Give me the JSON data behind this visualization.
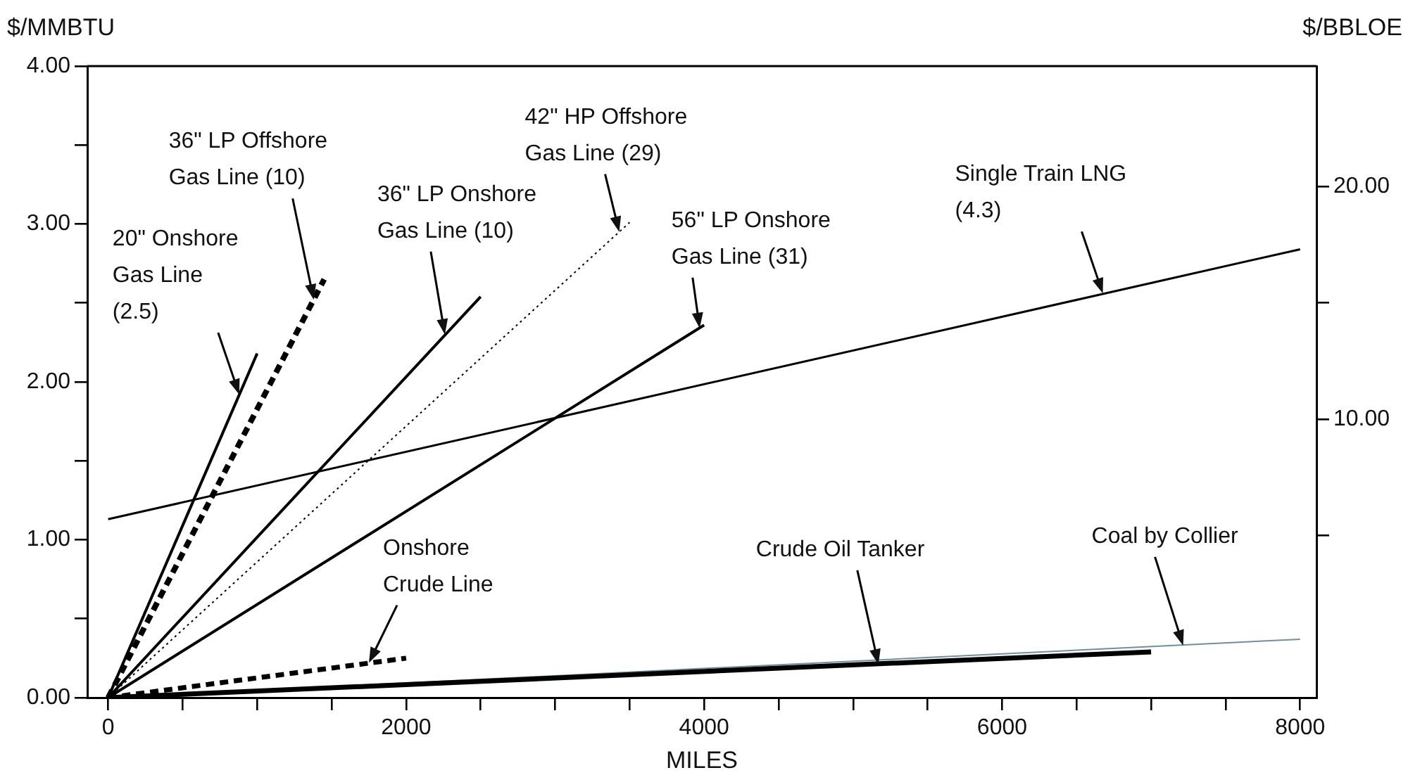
{
  "chart_data": {
    "type": "line",
    "xlabel": "MILES",
    "ylabel": "$/MMBTU",
    "y2label": "$/BBLOE",
    "xlim": [
      -140,
      8110
    ],
    "ylim": [
      0,
      4
    ],
    "y2lim": [
      -2,
      25.2
    ],
    "xticks": [
      0,
      {
        "value": 500,
        "label": null
      },
      {
        "value": 1000,
        "label": null
      },
      {
        "value": 1500,
        "label": null
      },
      2000,
      {
        "value": 2500,
        "label": null
      },
      {
        "value": 3000,
        "label": null
      },
      {
        "value": 3500,
        "label": null
      },
      4000,
      {
        "value": 4500,
        "label": null
      },
      {
        "value": 5000,
        "label": null
      },
      {
        "value": 5500,
        "label": null
      },
      6000,
      {
        "value": 6500,
        "label": null
      },
      {
        "value": 7000,
        "label": null
      },
      {
        "value": 7500,
        "label": null
      },
      8000
    ],
    "yticks": [
      {
        "value": 0,
        "label": "0.00"
      },
      {
        "value": 0.5,
        "label": null
      },
      {
        "value": 1,
        "label": "1.00"
      },
      {
        "value": 1.5,
        "label": null
      },
      {
        "value": 2,
        "label": "2.00"
      },
      {
        "value": 2.5,
        "label": null
      },
      {
        "value": 3,
        "label": "3.00"
      },
      {
        "value": 3.5,
        "label": null
      },
      {
        "value": 4,
        "label": "4.00"
      }
    ],
    "y2ticks": [
      {
        "value": 5,
        "label": null
      },
      {
        "value": 10,
        "label": "10.00"
      },
      {
        "value": 15,
        "label": null
      },
      {
        "value": 20,
        "label": "20.00"
      }
    ],
    "grid": false,
    "legend": false,
    "marker": "none",
    "series": [
      {
        "color": "#000000",
        "x": [
          0,
          1000
        ],
        "values": [
          0,
          2.18
        ],
        "line_style": "solid"
      },
      {
        "color": "#000000",
        "x": [
          0,
          1450
        ],
        "values": [
          0,
          2.65
        ],
        "line_style": "dashed"
      },
      {
        "color": "#000000",
        "x": [
          0,
          2500
        ],
        "values": [
          0,
          2.54
        ],
        "line_style": "solid"
      },
      {
        "color": "#000000",
        "x": [
          0,
          3500
        ],
        "values": [
          0,
          3.01
        ],
        "line_style": "dotted"
      },
      {
        "color": "#000000",
        "x": [
          0,
          4000
        ],
        "values": [
          0,
          2.36
        ],
        "line_style": "solid"
      },
      {
        "color": "#000000",
        "x": [
          0,
          8000
        ],
        "values": [
          1.13,
          2.84
        ],
        "line_style": "solid"
      },
      {
        "color": "#000000",
        "x": [
          0,
          2000
        ],
        "values": [
          0,
          0.25
        ],
        "line_style": "dashed"
      },
      {
        "color": "#000000",
        "x": [
          0,
          7000
        ],
        "values": [
          0,
          0.29
        ],
        "line_style": "solid"
      },
      {
        "color": "#6f8fa0",
        "x": [
          0,
          8000
        ],
        "values": [
          0,
          0.37
        ],
        "line_style": "solid"
      }
    ],
    "annotations": [
      {
        "text": "20\" Onshore\nGas Line\n(2.5)",
        "x": 880,
        "y": 1.92
      },
      {
        "text": "36\" LP Offshore\nGas Line (10)",
        "x": 1380,
        "y": 2.52
      },
      {
        "text": "36\" LP Onshore\nGas Line (10)",
        "x": 2260,
        "y": 2.3
      },
      {
        "text": "42\" HP Offshore\nGas Line (29)",
        "x": 3430,
        "y": 2.95
      },
      {
        "text": "56\" LP Onshore\nGas Line (31)",
        "x": 3970,
        "y": 2.34
      },
      {
        "text": "Single Train LNG\n(4.3)",
        "x": 6676,
        "y": 2.56
      },
      {
        "text": "Onshore\nCrude Line",
        "x": 1750,
        "y": 0.22
      },
      {
        "text": "Crude Oil Tanker",
        "x": 5170,
        "y": 0.21
      },
      {
        "text": "Coal by Collier",
        "x": 7215,
        "y": 0.33
      }
    ]
  }
}
